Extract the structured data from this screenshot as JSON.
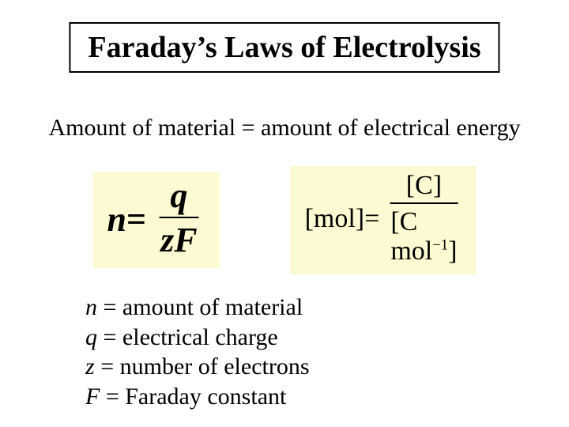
{
  "colors": {
    "background": "#ffffff",
    "text": "#000000",
    "title_box_fill": "#ffffff",
    "title_box_border": "#000000",
    "equation_box_fill": "#fbfad2"
  },
  "typography": {
    "font_family": "Times New Roman, serif",
    "title_fontsize_pt": 30,
    "title_weight": "bold",
    "subtitle_fontsize_pt": 22,
    "equation_main_fontsize_pt": 34,
    "equation_units_fontsize_pt": 26,
    "definitions_fontsize_pt": 22
  },
  "title": "Faraday’s Laws of Electrolysis",
  "subtitle": "Amount of material = amount of electrical energy",
  "equation_main": {
    "lhs_var": "n",
    "eq": " = ",
    "numerator": "q",
    "denominator": "zF"
  },
  "equation_units": {
    "lhs": "[mol]",
    "eq": " = ",
    "numerator": "[C]",
    "denom_open": "[C mol",
    "denom_exponent": "−1",
    "denom_close": "]"
  },
  "definitions": {
    "n": {
      "var": "n",
      "text": " = amount of material"
    },
    "q": {
      "var": "q",
      "text": " = electrical charge"
    },
    "z": {
      "var": "z",
      "text": " = number of electrons"
    },
    "F": {
      "var": "F",
      "text": " = Faraday constant"
    }
  }
}
